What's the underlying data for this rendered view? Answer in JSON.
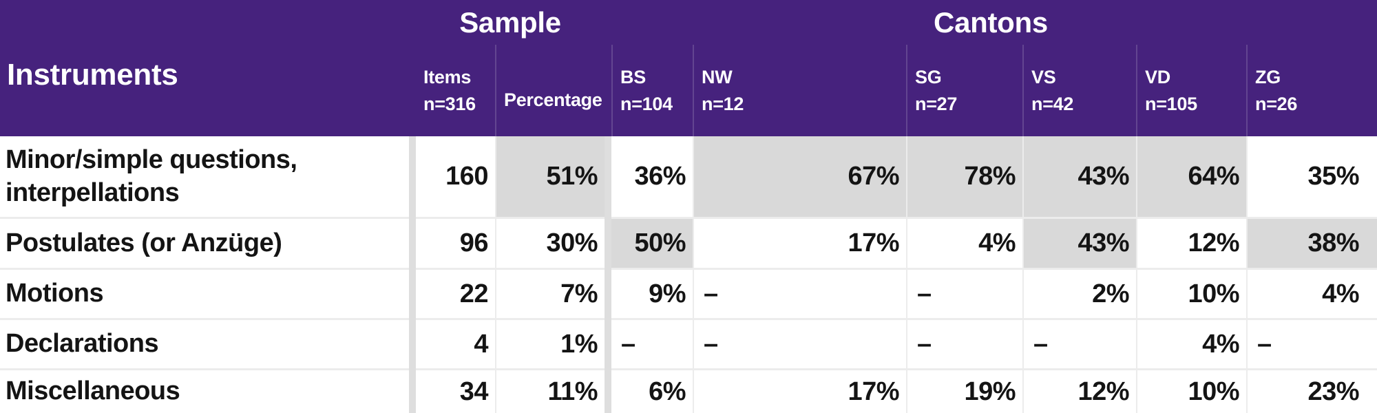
{
  "colors": {
    "header_bg": "#46227d",
    "header_text": "#ffffff",
    "cell_highlight": "#d9d9d9",
    "separator_band": "#dedede",
    "body_text": "#141414",
    "grid_line": "#ececec"
  },
  "header": {
    "row_label": "Instruments",
    "groups": [
      {
        "label": "Sample"
      },
      {
        "label": "Cantons"
      }
    ],
    "columns": [
      {
        "label": "Items",
        "n": "n=316"
      },
      {
        "label": "Percentage",
        "n": ""
      },
      {
        "label": "BS",
        "n": "n=104"
      },
      {
        "label": "NW",
        "n": "n=12"
      },
      {
        "label": "SG",
        "n": "n=27"
      },
      {
        "label": "VS",
        "n": "n=42"
      },
      {
        "label": "VD",
        "n": "n=105"
      },
      {
        "label": "ZG",
        "n": "n=26"
      }
    ]
  },
  "rows": [
    {
      "label": "Minor/simple questions, interpellations",
      "values": [
        "160",
        "51%",
        "36%",
        "67%",
        "78%",
        "43%",
        "64%",
        "35%"
      ],
      "highlighted": [
        false,
        true,
        false,
        true,
        true,
        true,
        true,
        false
      ]
    },
    {
      "label": "Postulates (or Anzüge)",
      "values": [
        "96",
        "30%",
        "50%",
        "17%",
        "4%",
        "43%",
        "12%",
        "38%"
      ],
      "highlighted": [
        false,
        false,
        true,
        false,
        false,
        true,
        false,
        true
      ]
    },
    {
      "label": "Motions",
      "values": [
        "22",
        "7%",
        "9%",
        "–",
        "–",
        "2%",
        "10%",
        "4%"
      ],
      "highlighted": [
        false,
        false,
        false,
        false,
        false,
        false,
        false,
        false
      ]
    },
    {
      "label": "Declarations",
      "values": [
        "4",
        "1%",
        "–",
        "–",
        "–",
        "–",
        "4%",
        "–"
      ],
      "highlighted": [
        false,
        false,
        false,
        false,
        false,
        false,
        false,
        false
      ]
    },
    {
      "label": "Miscellaneous",
      "values": [
        "34",
        "11%",
        "6%",
        "17%",
        "19%",
        "12%",
        "10%",
        "23%"
      ],
      "highlighted": [
        false,
        false,
        false,
        false,
        false,
        false,
        false,
        false
      ]
    }
  ]
}
